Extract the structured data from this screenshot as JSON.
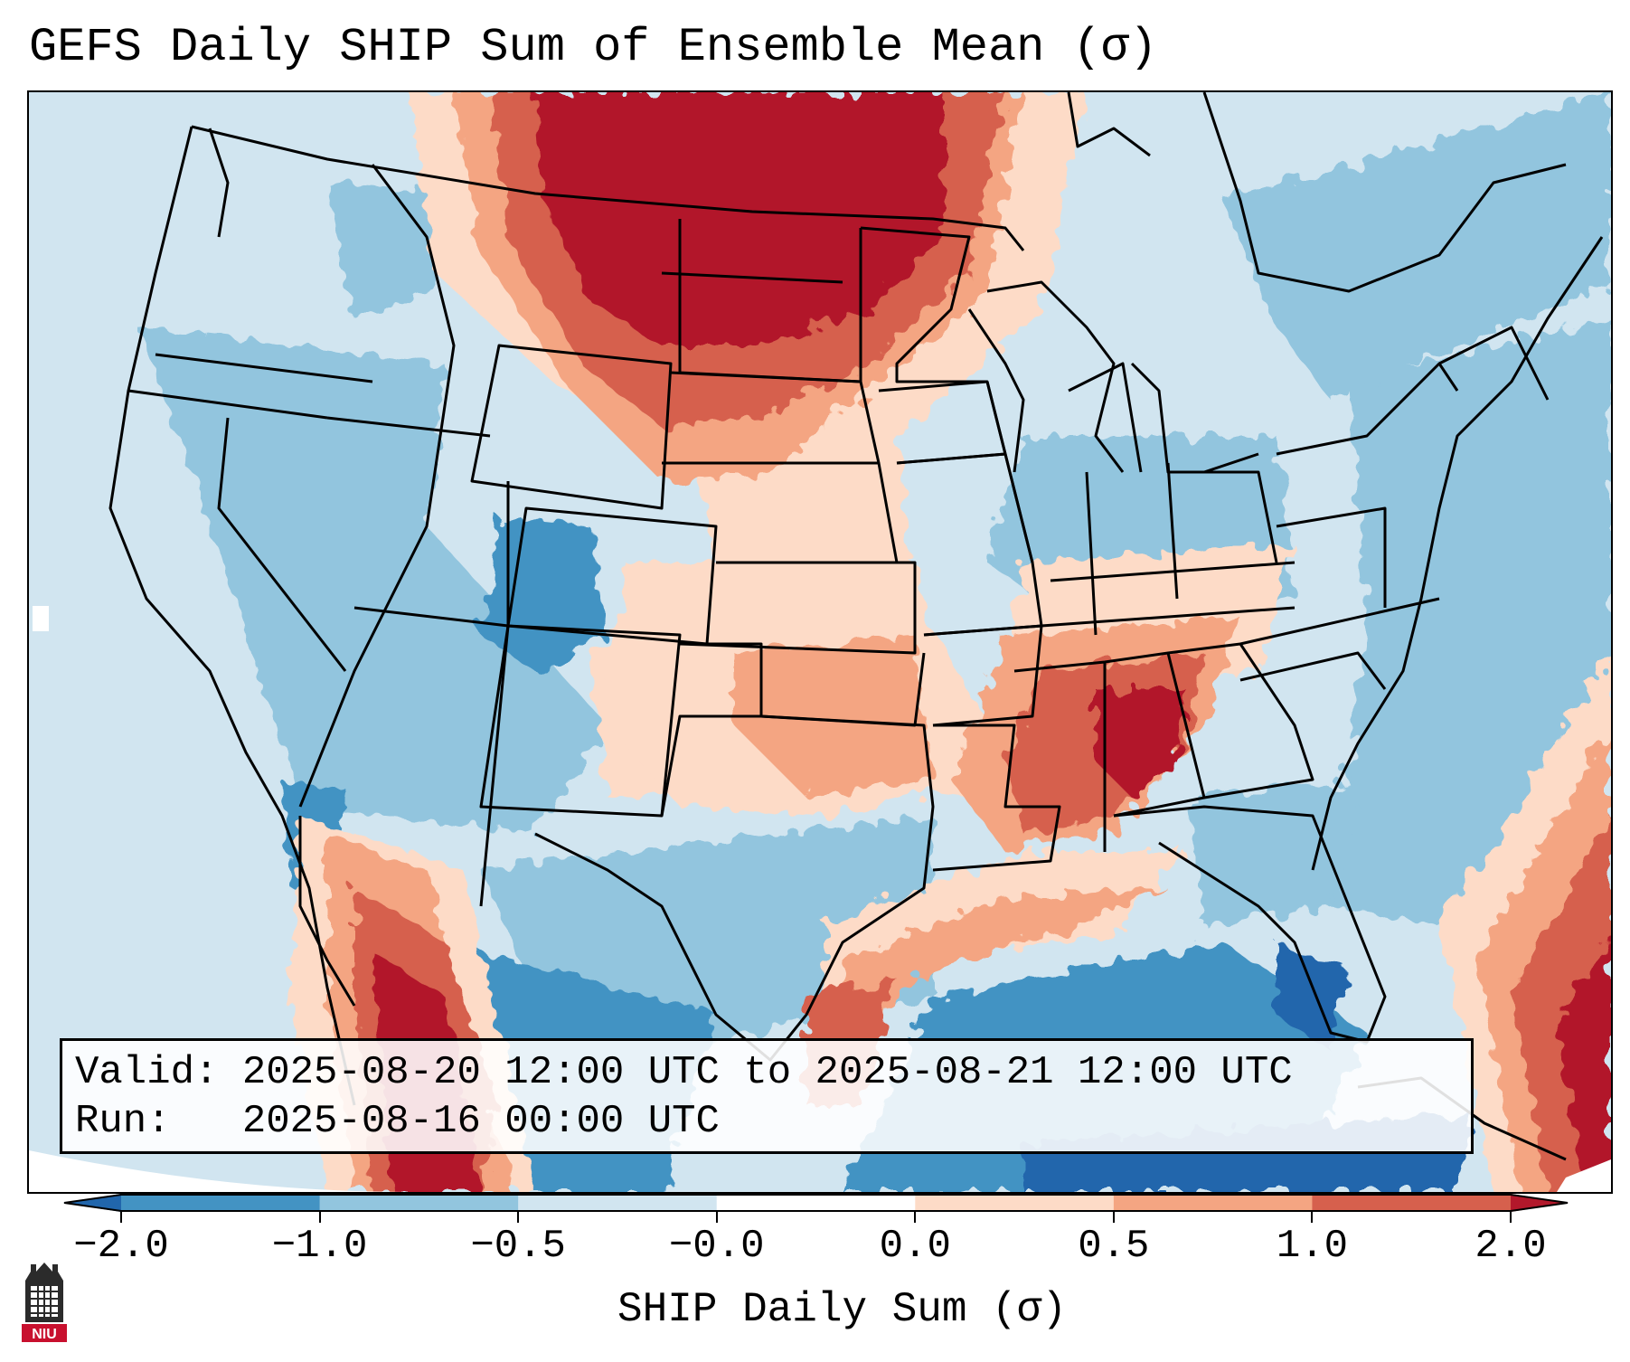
{
  "title": "GEFS Daily SHIP Sum of Ensemble Mean (σ)",
  "info": {
    "valid_label": "Valid:",
    "valid_value": "2025-08-20 12:00 UTC to 2025-08-21 12:00 UTC",
    "run_label": "Run:",
    "run_value": "2025-08-16 00:00 UTC"
  },
  "colorbar": {
    "label": "SHIP Daily Sum (σ)",
    "ticks": [
      "−2.0",
      "−1.0",
      "−0.5",
      "−0.0",
      "0.0",
      "0.5",
      "1.0",
      "2.0"
    ],
    "colors": [
      "#2166ac",
      "#4393c3",
      "#92c5de",
      "#d1e5f0",
      "#ffffff",
      "#fddbc7",
      "#f4a582",
      "#d6604d",
      "#b2182b"
    ]
  },
  "logo": {
    "text": "NIU"
  }
}
